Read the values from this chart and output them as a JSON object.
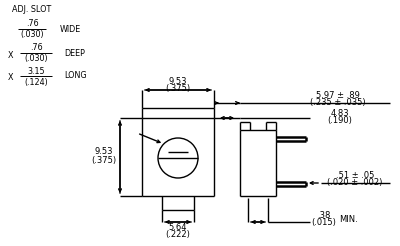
{
  "bg_color": "#ffffff",
  "line_color": "#000000",
  "text_color": "#000000",
  "figsize": [
    4.0,
    2.46
  ],
  "dpi": 100,
  "labels": {
    "adj_slot": "ADJ. SLOT",
    "wide": "WIDE",
    "deep": "DEEP",
    "long": "LONG",
    "min": "MIN.",
    "dim_953_top": "9.53",
    "dim_953_top_mm": "(.375)",
    "dim_564": "5.64",
    "dim_564_mm": "(.222)",
    "dim_953_left": "9.53",
    "dim_953_left_mm": "(.375)",
    "dim_597": "5.97 ± .89",
    "dim_597_mm": "(.235 ± .035)",
    "dim_483": "4.83",
    "dim_483_mm": "(.190)",
    "dim_051": ".51 ± .05",
    "dim_051_mm": "(.020 ± .002)",
    "dim_038": ".38",
    "dim_038_mm": "(.015)",
    "dim_076_wide": ".76",
    "dim_076_wide_mm": "(.030)",
    "dim_076_deep": ".76",
    "dim_076_deep_mm": "(.030)",
    "dim_315": "3.15",
    "dim_315_mm": "(.124)",
    "x1": "X",
    "x2": "X"
  }
}
